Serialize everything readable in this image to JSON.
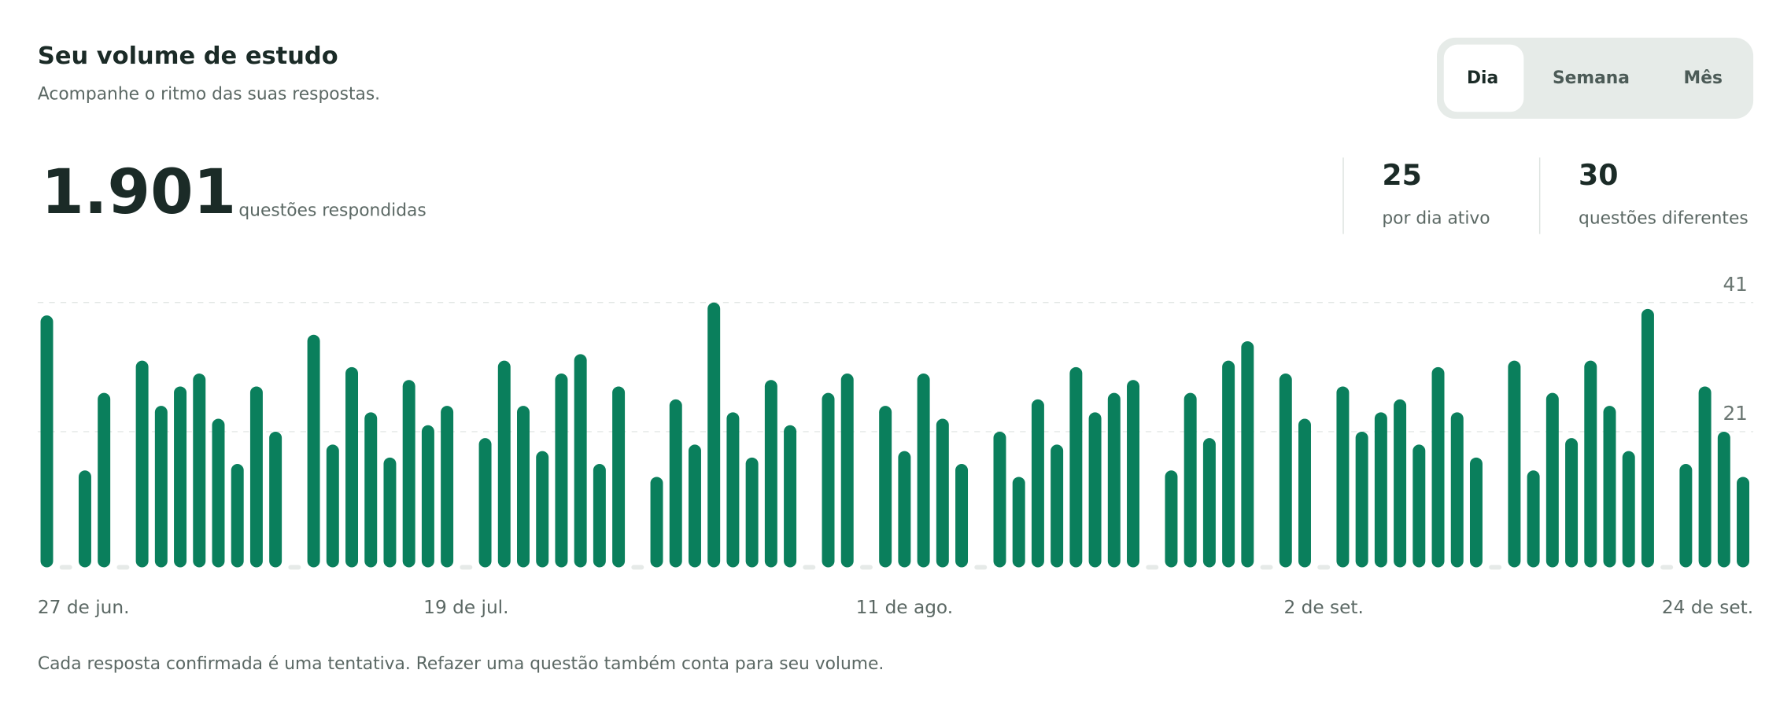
{
  "header": {
    "title": "Seu volume de estudo",
    "subtitle": "Acompanhe o ritmo das suas respostas."
  },
  "tabs": [
    "Dia",
    "Semana",
    "Mês"
  ],
  "summary": {
    "total": "1.901",
    "total_label": "questões respondidas"
  },
  "stats": [
    {
      "value": 25,
      "label": "por dia ativo"
    },
    {
      "value": 30,
      "label": "questões diferentes"
    }
  ],
  "chart_data": {
    "type": "bar",
    "categories": [
      "27 de jun.",
      null,
      null,
      null,
      null,
      null,
      null,
      null,
      null,
      null,
      null,
      null,
      null,
      null,
      null,
      null,
      null,
      null,
      null,
      null,
      null,
      null,
      "19 de jul.",
      null,
      null,
      null,
      null,
      null,
      null,
      null,
      null,
      null,
      null,
      null,
      null,
      null,
      null,
      null,
      null,
      null,
      null,
      null,
      null,
      null,
      null,
      "11 de ago.",
      null,
      null,
      null,
      null,
      null,
      null,
      null,
      null,
      null,
      null,
      null,
      null,
      null,
      null,
      null,
      null,
      null,
      null,
      null,
      null,
      null,
      "2 de set.",
      null,
      null,
      null,
      null,
      null,
      null,
      null,
      null,
      null,
      null,
      null,
      null,
      null,
      null,
      null,
      null,
      null,
      null,
      null,
      null,
      null,
      "24 de set."
    ],
    "values": [
      39,
      0,
      15,
      27,
      0,
      32,
      25,
      28,
      30,
      23,
      16,
      28,
      21,
      0,
      36,
      19,
      31,
      24,
      17,
      29,
      22,
      25,
      0,
      20,
      32,
      25,
      18,
      30,
      33,
      16,
      28,
      0,
      14,
      26,
      19,
      41,
      24,
      17,
      29,
      22,
      0,
      27,
      30,
      0,
      25,
      18,
      30,
      23,
      16,
      0,
      21,
      14,
      26,
      19,
      31,
      24,
      27,
      29,
      0,
      15,
      27,
      20,
      32,
      35,
      0,
      30,
      23,
      0,
      28,
      21,
      24,
      26,
      19,
      31,
      24,
      17,
      0,
      32,
      15,
      27,
      20,
      32,
      25,
      18,
      40,
      0,
      16,
      28,
      21,
      14
    ],
    "color": "#0a7f5c",
    "ylim": [
      0,
      41
    ],
    "yticks": [
      21,
      41
    ],
    "grid": true
  },
  "footnote": "Cada resposta confirmada é uma tentativa. Refazer uma questão também conta para seu volume."
}
